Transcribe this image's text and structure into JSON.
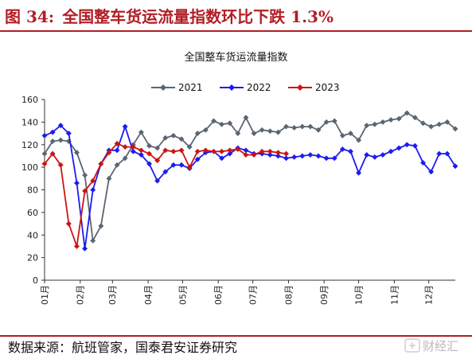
{
  "header": {
    "figure_label": "图 34:",
    "figure_title": "全国整车货运流量指数环比下跌 1.3%"
  },
  "footer": {
    "source": "数据来源：航班管家，国泰君安证券研究",
    "watermark": "财经汇"
  },
  "colors": {
    "accent": "#b11e25",
    "series_2021": "#5a6672",
    "series_2022": "#1c1cf0",
    "series_2023": "#cc1414"
  },
  "chart_data": {
    "type": "line",
    "title": "全国整车货运流量指数",
    "ylim": [
      0,
      160
    ],
    "yticks": [
      0,
      20,
      40,
      60,
      80,
      100,
      120,
      140,
      160
    ],
    "xlim": [
      1,
      52
    ],
    "xticks": [
      {
        "label": "01月",
        "week": 1
      },
      {
        "label": "02月",
        "week": 5.43
      },
      {
        "label": "03月",
        "week": 9.43
      },
      {
        "label": "04月",
        "week": 13.86
      },
      {
        "label": "05月",
        "week": 18.14
      },
      {
        "label": "06月",
        "week": 22.57
      },
      {
        "label": "07月",
        "week": 26.86
      },
      {
        "label": "08月",
        "week": 31.29
      },
      {
        "label": "09月",
        "week": 35.71
      },
      {
        "label": "10月",
        "week": 40.0
      },
      {
        "label": "11月",
        "week": 44.43
      },
      {
        "label": "12月",
        "week": 48.71
      }
    ],
    "legend": "top",
    "grid": false,
    "series": [
      {
        "name": "2021",
        "marker": "diamond",
        "x": [
          1,
          2,
          3,
          4,
          5,
          6,
          7,
          8,
          9,
          10,
          11,
          12,
          13,
          14,
          15,
          16,
          17,
          18,
          19,
          20,
          21,
          22,
          23,
          24,
          25,
          26,
          27,
          28,
          29,
          30,
          31,
          32,
          33,
          34,
          35,
          36,
          37,
          38,
          39,
          40,
          41,
          42,
          43,
          44,
          45,
          46,
          47,
          48,
          49,
          50,
          51,
          52
        ],
        "values": [
          112,
          123,
          124,
          123,
          113,
          93,
          35,
          48,
          90,
          102,
          108,
          120,
          131,
          119,
          117,
          126,
          128,
          125,
          118,
          130,
          133,
          141,
          138,
          139,
          130,
          144,
          130,
          133,
          132,
          131,
          136,
          135,
          136,
          136,
          133,
          140,
          141,
          128,
          130,
          124,
          137,
          138,
          140,
          142,
          143,
          148,
          144,
          139,
          136,
          138,
          140,
          134
        ]
      },
      {
        "name": "2022",
        "marker": "diamond",
        "x": [
          1,
          2,
          3,
          4,
          5,
          6,
          7,
          8,
          9,
          10,
          11,
          12,
          13,
          14,
          15,
          16,
          17,
          18,
          19,
          20,
          21,
          22,
          23,
          24,
          25,
          26,
          27,
          28,
          29,
          30,
          31,
          32,
          33,
          34,
          35,
          36,
          37,
          38,
          39,
          40,
          41,
          42,
          43,
          44,
          45,
          46,
          47,
          48,
          49,
          50,
          51,
          52
        ],
        "values": [
          128,
          131,
          137,
          130,
          86,
          28,
          80,
          103,
          115,
          115,
          136,
          114,
          111,
          103,
          88,
          96,
          102,
          102,
          99,
          107,
          113,
          114,
          108,
          112,
          117,
          115,
          112,
          112,
          111,
          110,
          108,
          109,
          110,
          111,
          110,
          108,
          108,
          116,
          114,
          95,
          111,
          109,
          111,
          114,
          117,
          120,
          119,
          104,
          96,
          112,
          112,
          101
        ]
      },
      {
        "name": "2023",
        "marker": "diamond",
        "x": [
          1,
          2,
          3,
          4,
          5,
          6,
          7,
          8,
          9,
          10,
          11,
          12,
          13,
          14,
          15,
          16,
          17,
          18,
          19,
          20,
          21,
          22,
          23,
          24,
          25,
          26,
          27,
          28,
          29,
          30,
          31
        ],
        "values": [
          103,
          112,
          102,
          50,
          30,
          79,
          88,
          103,
          113,
          121,
          118,
          118,
          115,
          112,
          106,
          115,
          114,
          115,
          100,
          114,
          115,
          114,
          114,
          115,
          116,
          111,
          111,
          114,
          114,
          113,
          112
        ]
      }
    ]
  }
}
